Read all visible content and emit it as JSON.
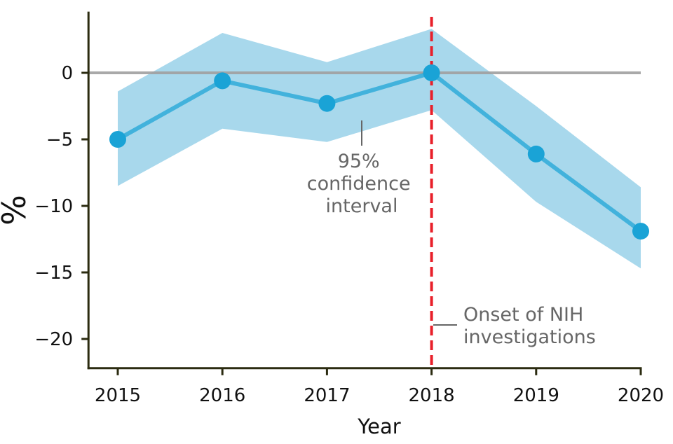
{
  "chart_data": {
    "type": "line",
    "x": [
      2015,
      2016,
      2017,
      2018,
      2019,
      2020
    ],
    "x_tick_labels": [
      "2015",
      "2016",
      "2017",
      "2018",
      "2019",
      "2020"
    ],
    "series": [
      {
        "values": [
          -5.0,
          -0.6,
          -2.3,
          0.0,
          -6.1,
          -11.9
        ],
        "ci_upper": [
          -1.4,
          3.0,
          0.8,
          3.3,
          -2.5,
          -8.6
        ],
        "ci_lower": [
          -8.5,
          -4.2,
          -5.2,
          -2.8,
          -9.7,
          -14.7
        ],
        "color": "#1aa3d6",
        "band_color": "#a8d8ec"
      }
    ],
    "xlabel": "Year",
    "ylabel": "%",
    "xlim": [
      2014.72,
      2020.0
    ],
    "ylim": [
      -22.2,
      4.6
    ],
    "y_ticks": [
      0,
      -5,
      -10,
      -15,
      -20
    ],
    "y_tick_labels": [
      "0",
      "−5",
      "−10",
      "−15",
      "−20"
    ],
    "reference_line": {
      "y": 0,
      "color": "#a0a0a0"
    },
    "event_line": {
      "x": 2018,
      "color": "#e8202a",
      "style": "dashed"
    },
    "annotations": {
      "ci_label": [
        "95%",
        "confidence",
        "interval"
      ],
      "event_label": [
        "Onset of NIH",
        "investigations"
      ]
    },
    "axis_color": "#2b2b10",
    "grid": false
  }
}
